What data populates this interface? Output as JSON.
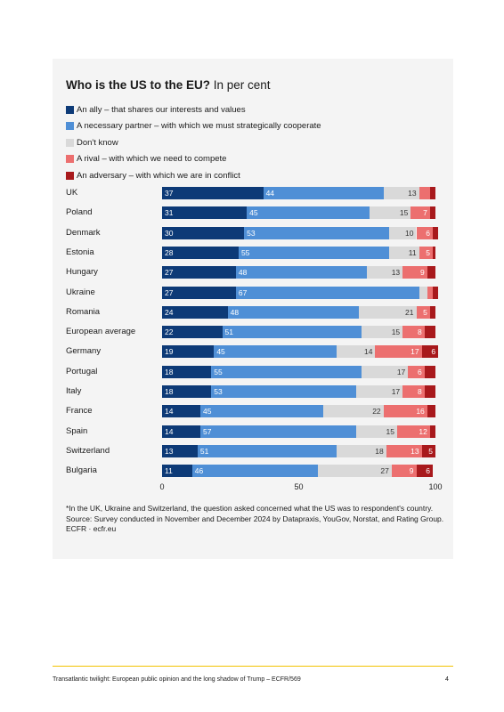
{
  "title": {
    "bold": "Who is the US to the EU?",
    "sub": " In per cent"
  },
  "legend": [
    {
      "label": "An ally – that shares our interests and values",
      "color": "#0d3a77"
    },
    {
      "label": "A necessary partner – with which we must strategically cooperate",
      "color": "#4f8fd6"
    },
    {
      "label": "Don't know",
      "color": "#d9d9d9"
    },
    {
      "label": "A rival – with which we need to compete",
      "color": "#ec6f6f"
    },
    {
      "label": "An adversary – with which we are in conflict",
      "color": "#a8191c"
    }
  ],
  "chart_data": {
    "type": "bar",
    "orientation": "horizontal-stacked-100",
    "title": "Who is the US to the EU? In per cent",
    "categories": [
      "UK",
      "Poland",
      "Denmark",
      "Estonia",
      "Hungary",
      "Ukraine",
      "Romania",
      "European average",
      "Germany",
      "Portugal",
      "Italy",
      "France",
      "Spain",
      "Switzerland",
      "Bulgaria"
    ],
    "xlim": [
      0,
      100
    ],
    "xticks": [
      "0",
      "50",
      "100"
    ],
    "series": [
      {
        "name": "An ally – that shares our interests and values",
        "values": [
          37,
          31,
          30,
          28,
          27,
          27,
          24,
          22,
          19,
          18,
          18,
          14,
          14,
          13,
          11
        ]
      },
      {
        "name": "A necessary partner – with which we must strategically cooperate",
        "values": [
          44,
          45,
          53,
          55,
          48,
          67,
          48,
          51,
          45,
          55,
          53,
          45,
          57,
          51,
          46
        ]
      },
      {
        "name": "Don't know",
        "values": [
          13,
          15,
          10,
          11,
          13,
          3,
          21,
          15,
          14,
          17,
          17,
          22,
          15,
          18,
          27
        ]
      },
      {
        "name": "A rival – with which we need to compete",
        "values": [
          4,
          7,
          6,
          5,
          9,
          2,
          5,
          8,
          17,
          6,
          8,
          16,
          12,
          13,
          9
        ]
      },
      {
        "name": "An adversary – with which we are in conflict",
        "values": [
          2,
          2,
          2,
          1,
          3,
          2,
          2,
          4,
          6,
          4,
          4,
          3,
          2,
          5,
          6
        ]
      }
    ],
    "labels": [
      [
        "37",
        "44",
        "13",
        "",
        ""
      ],
      [
        "31",
        "45",
        "15",
        "7",
        ""
      ],
      [
        "30",
        "53",
        "10",
        "6",
        ""
      ],
      [
        "28",
        "55",
        "11",
        "5",
        ""
      ],
      [
        "27",
        "48",
        "13",
        "9",
        ""
      ],
      [
        "27",
        "67",
        "",
        "",
        ""
      ],
      [
        "24",
        "48",
        "21",
        "5",
        ""
      ],
      [
        "22",
        "51",
        "15",
        "8",
        ""
      ],
      [
        "19",
        "45",
        "14",
        "17",
        "6"
      ],
      [
        "18",
        "55",
        "17",
        "6",
        ""
      ],
      [
        "18",
        "53",
        "17",
        "8",
        ""
      ],
      [
        "14",
        "45",
        "22",
        "16",
        ""
      ],
      [
        "14",
        "57",
        "15",
        "12",
        ""
      ],
      [
        "13",
        "51",
        "18",
        "13",
        "5"
      ],
      [
        "11",
        "46",
        "27",
        "9",
        "6"
      ]
    ]
  },
  "notes": {
    "footnote": "*In the UK, Ukraine and Switzerland, the question asked concerned what the US was to respondent's country.",
    "source": "Source: Survey conducted in November and December 2024 by Datapraxis, YouGov, Norstat, and Rating Group.",
    "credit": "ECFR · ecfr.eu"
  },
  "footer": {
    "text": "Transatlantic twilight: European public opinion and the long shadow of Trump – ECFR/569",
    "page": "4"
  }
}
